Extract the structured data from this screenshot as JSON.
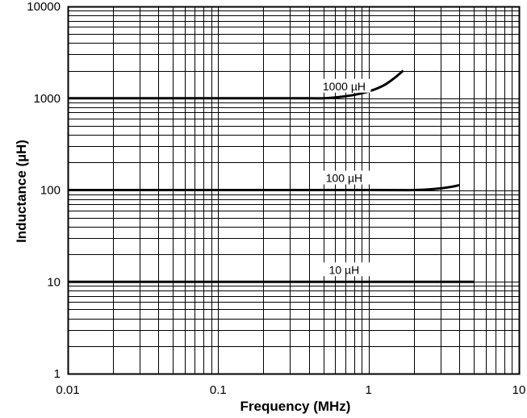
{
  "chart_data": {
    "type": "line",
    "xlabel": "Frequency (MHz)",
    "ylabel": "Inductance (µH)",
    "x_scale": "log",
    "y_scale": "log",
    "xlim": [
      0.01,
      10
    ],
    "ylim": [
      1,
      10000
    ],
    "grid": true,
    "x_ticks": [
      {
        "value": 0.01,
        "label": "0.01"
      },
      {
        "value": 0.1,
        "label": "0.1"
      },
      {
        "value": 1,
        "label": "1"
      },
      {
        "value": 10,
        "label": "10"
      }
    ],
    "y_ticks": [
      {
        "value": 1,
        "label": "1"
      },
      {
        "value": 10,
        "label": "10"
      },
      {
        "value": 100,
        "label": "100"
      },
      {
        "value": 1000,
        "label": "1000"
      },
      {
        "value": 10000,
        "label": "10000"
      }
    ],
    "series": [
      {
        "name": "1000 µH",
        "label_at": {
          "x": 0.2,
          "y": 1000
        },
        "points": [
          {
            "x": 0.01,
            "y": 1000
          },
          {
            "x": 0.3,
            "y": 1000
          },
          {
            "x": 0.5,
            "y": 1000
          },
          {
            "x": 0.7,
            "y": 1050
          },
          {
            "x": 0.9,
            "y": 1130
          },
          {
            "x": 1.1,
            "y": 1250
          },
          {
            "x": 1.3,
            "y": 1420
          },
          {
            "x": 1.5,
            "y": 1680
          },
          {
            "x": 1.7,
            "y": 2000
          }
        ]
      },
      {
        "name": "100 µH",
        "label_at": {
          "x": 0.2,
          "y": 100
        },
        "points": [
          {
            "x": 0.01,
            "y": 100
          },
          {
            "x": 1.0,
            "y": 100
          },
          {
            "x": 2.0,
            "y": 100
          },
          {
            "x": 2.8,
            "y": 103
          },
          {
            "x": 3.5,
            "y": 108
          },
          {
            "x": 4.0,
            "y": 113
          }
        ]
      },
      {
        "name": "10 µH",
        "label_at": {
          "x": 0.2,
          "y": 10
        },
        "points": [
          {
            "x": 0.01,
            "y": 10
          },
          {
            "x": 5.0,
            "y": 10
          }
        ]
      }
    ],
    "colors": {
      "line": "#000000",
      "grid": "#000000",
      "background": "#ffffff"
    }
  }
}
